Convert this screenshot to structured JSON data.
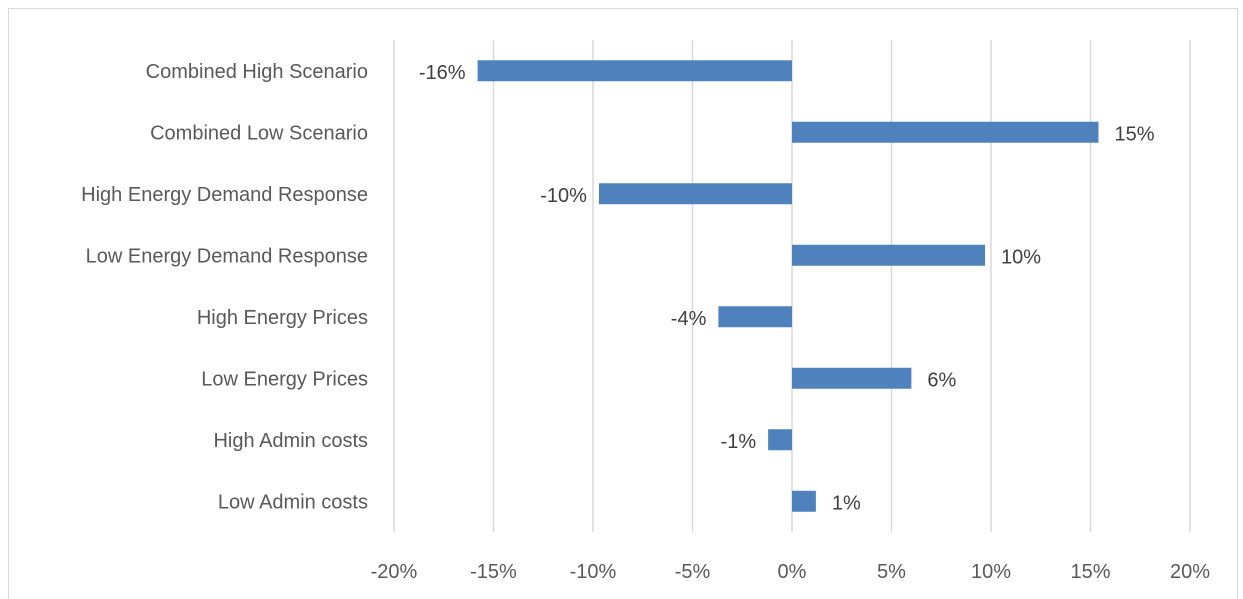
{
  "chart_data": {
    "type": "bar",
    "orientation": "horizontal",
    "categories": [
      "Combined High Scenario",
      "Combined Low Scenario",
      "High Energy Demand Response",
      "Low Energy Demand Response",
      "High Energy Prices",
      "Low Energy Prices",
      "High Admin costs",
      "Low Admin costs"
    ],
    "values": [
      -15.8,
      15.4,
      -9.7,
      9.7,
      -3.7,
      6.0,
      -1.2,
      1.2
    ],
    "data_labels": [
      "-16%",
      "15%",
      "-10%",
      "10%",
      "-4%",
      "6%",
      "-1%",
      "1%"
    ],
    "xlim": [
      -20,
      20
    ],
    "xticks": [
      -20,
      -15,
      -10,
      -5,
      0,
      5,
      10,
      15,
      20
    ],
    "xtick_labels": [
      "-20%",
      "-15%",
      "-10%",
      "-5%",
      "0%",
      "5%",
      "10%",
      "15%",
      "20%"
    ],
    "grid": "vertical",
    "colors": {
      "bar": "#4f81bd",
      "grid": "#d9d9d9",
      "text": "#595959"
    }
  }
}
